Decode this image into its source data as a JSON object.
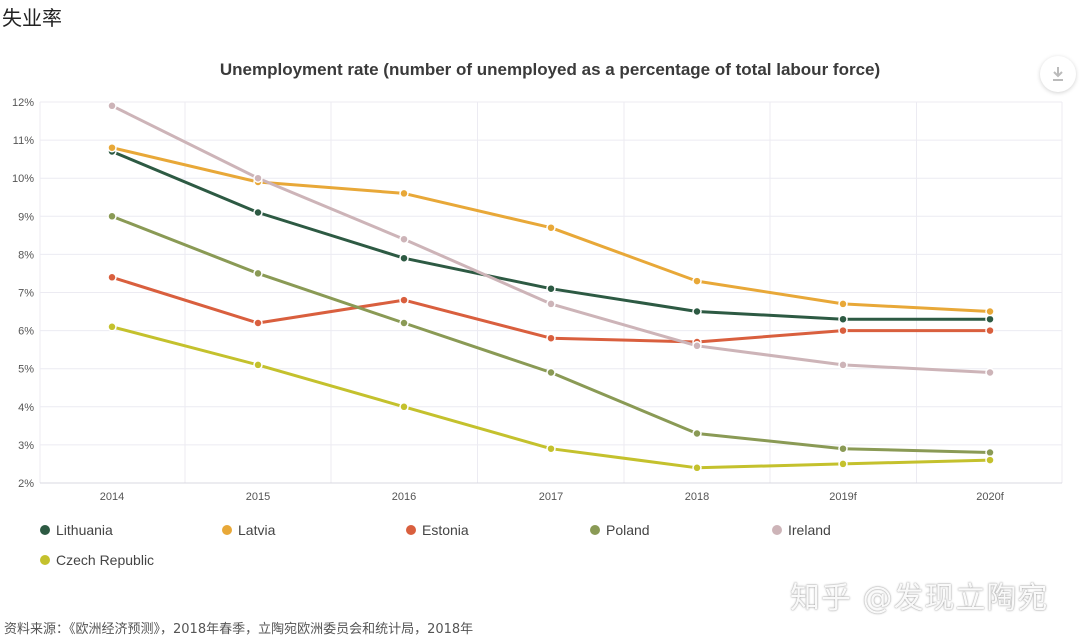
{
  "page": {
    "heading": "失业率",
    "source": "资料来源：《欧洲经济预测》，2018年春季，立陶宛欧洲委员会和统计局，2018年",
    "watermark": "知乎 @发现立陶宛"
  },
  "chart_data": {
    "type": "line",
    "title": "Unemployment rate (number of unemployed as a percentage of total labour force)",
    "categories": [
      "2014",
      "2015",
      "2016",
      "2017",
      "2018",
      "2019f",
      "2020f"
    ],
    "ylim": [
      2,
      12
    ],
    "yticks": [
      "2%",
      "3%",
      "4%",
      "5%",
      "6%",
      "7%",
      "8%",
      "9%",
      "10%",
      "11%",
      "12%"
    ],
    "grid": true,
    "legend_position": "bottom-left",
    "series": [
      {
        "name": "Lithuania",
        "color": "#2d5a43",
        "values": [
          10.7,
          9.1,
          7.9,
          7.1,
          6.5,
          6.3,
          6.3
        ]
      },
      {
        "name": "Latvia",
        "color": "#e8a838",
        "values": [
          10.8,
          9.9,
          9.6,
          8.7,
          7.3,
          6.7,
          6.5
        ]
      },
      {
        "name": "Estonia",
        "color": "#d95f3e",
        "values": [
          7.4,
          6.2,
          6.8,
          5.8,
          5.7,
          6.0,
          6.0
        ]
      },
      {
        "name": "Poland",
        "color": "#8a9a55",
        "values": [
          9.0,
          7.5,
          6.2,
          4.9,
          3.3,
          2.9,
          2.8
        ]
      },
      {
        "name": "Ireland",
        "color": "#cdb4b8",
        "values": [
          11.9,
          10.0,
          8.4,
          6.7,
          5.6,
          5.1,
          4.9
        ]
      },
      {
        "name": "Czech Republic",
        "color": "#c4c12d",
        "values": [
          6.1,
          5.1,
          4.0,
          2.9,
          2.4,
          2.5,
          2.6
        ]
      }
    ]
  },
  "toolbar": {
    "download_icon": "download-icon"
  }
}
